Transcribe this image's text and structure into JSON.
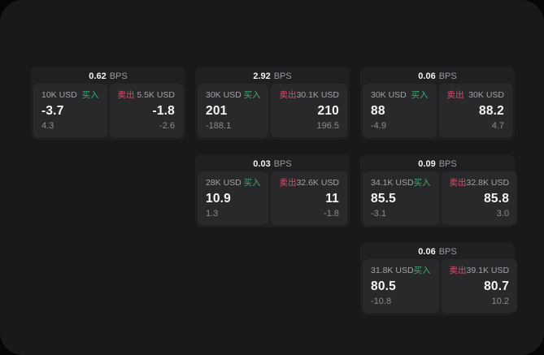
{
  "labels": {
    "bps": "BPS",
    "buy": "买入",
    "sell": "卖出"
  },
  "colors": {
    "buy_green": "#40a86c",
    "sell_red": "#d15269",
    "screen_bg": "#19191b",
    "card_bg": "#202023",
    "tile_bg": "#29292c"
  },
  "cards": [
    {
      "bps": "0.62",
      "buy": {
        "amount": "10K USD",
        "value": "-3.7",
        "delta": "4.3"
      },
      "sell": {
        "amount": "5.5K USD",
        "value": "-1.8",
        "delta": "-2.6"
      }
    },
    {
      "bps": "2.92",
      "buy": {
        "amount": "30K USD",
        "value": "201",
        "delta": "-188.1"
      },
      "sell": {
        "amount": "30.1K USD",
        "value": "210",
        "delta": "196.5"
      }
    },
    {
      "bps": "0.06",
      "buy": {
        "amount": "30K USD",
        "value": "88",
        "delta": "-4.9"
      },
      "sell": {
        "amount": "30K USD",
        "value": "88.2",
        "delta": "4.7"
      }
    },
    {
      "bps": "0.03",
      "buy": {
        "amount": "28K USD",
        "value": "10.9",
        "delta": "1.3"
      },
      "sell": {
        "amount": "32.6K USD",
        "value": "11",
        "delta": "-1.8"
      }
    },
    {
      "bps": "0.09",
      "buy": {
        "amount": "34.1K USD",
        "value": "85.5",
        "delta": "-3.1"
      },
      "sell": {
        "amount": "32.8K USD",
        "value": "85.8",
        "delta": "3.0"
      }
    },
    {
      "bps": "0.06",
      "buy": {
        "amount": "31.8K USD",
        "value": "80.5",
        "delta": "-10.8"
      },
      "sell": {
        "amount": "39.1K USD",
        "value": "80.7",
        "delta": "10.2"
      }
    }
  ]
}
